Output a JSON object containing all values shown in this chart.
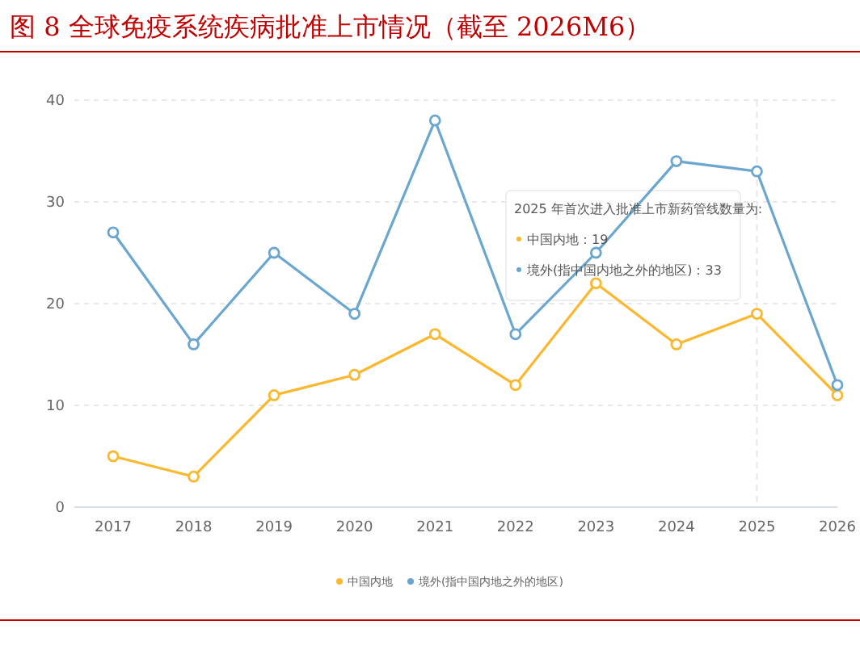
{
  "chart_data": {
    "type": "line",
    "title": "图 8 全球免疫系统疾病批准上市情况（截至 2026M6）",
    "categories": [
      "2017",
      "2018",
      "2019",
      "2020",
      "2021",
      "2022",
      "2023",
      "2024",
      "2025",
      "2026"
    ],
    "series": [
      {
        "name": "中国内地",
        "color": "#fbb72e",
        "values": [
          5,
          3,
          11,
          13,
          17,
          12,
          22,
          16,
          19,
          11
        ]
      },
      {
        "name": "境外(指中国内地之外的地区)",
        "color": "#6aa6cf",
        "values": [
          27,
          16,
          25,
          19,
          38,
          17,
          25,
          34,
          33,
          12
        ]
      }
    ],
    "ylim": [
      0,
      40
    ],
    "yticks": [
      0,
      10,
      20,
      30,
      40
    ],
    "grid": "y",
    "legend": "bottom",
    "marker": "circle",
    "line_style": "solid",
    "ref_lines": [
      {
        "axis": "x",
        "value": "2025",
        "color": "#e6e6e6",
        "line_style": "dashed"
      }
    ],
    "annotations": [
      "2025 年首次进入批准上市新药管线数量为:",
      "中国内地：19",
      "境外(指中国内地之外的地区)：33"
    ]
  }
}
